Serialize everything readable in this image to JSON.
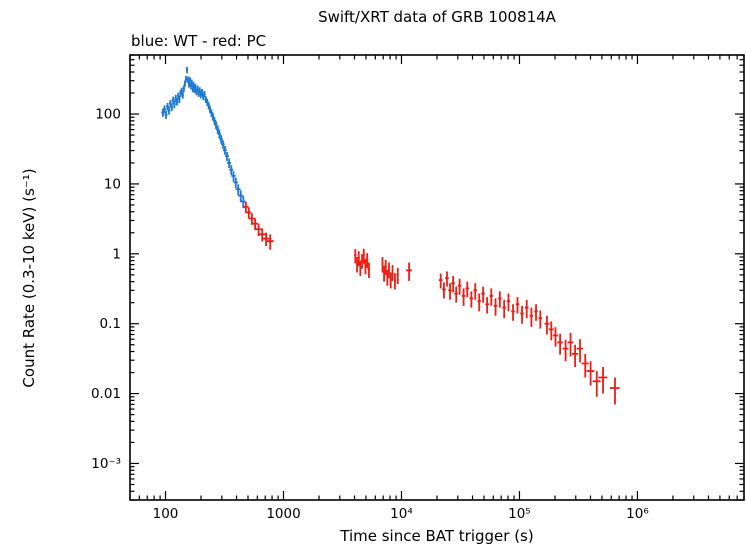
{
  "chart_data": {
    "type": "scatter",
    "title": "Swift/XRT data of GRB 100814A",
    "legend": "blue: WT - red: PC",
    "xlabel": "Time since BAT trigger (s)",
    "ylabel": "Count Rate (0.3-10 keV) (s⁻¹)",
    "xscale": "log",
    "yscale": "log",
    "grid": false,
    "legend_position": "top-left",
    "xlim": [
      50,
      8000000
    ],
    "ylim": [
      0.0003,
      700
    ],
    "x_ticks": [
      {
        "v": 100,
        "label": "100"
      },
      {
        "v": 1000,
        "label": "1000"
      },
      {
        "v": 10000,
        "label": "10⁴"
      },
      {
        "v": 100000,
        "label": "10⁵"
      },
      {
        "v": 1000000,
        "label": "10⁶"
      }
    ],
    "y_ticks": [
      {
        "v": 0.001,
        "label": "10⁻³"
      },
      {
        "v": 0.01,
        "label": "0.01"
      },
      {
        "v": 0.1,
        "label": "0.1"
      },
      {
        "v": 1,
        "label": "1"
      },
      {
        "v": 10,
        "label": "10"
      },
      {
        "v": 100,
        "label": "100"
      }
    ],
    "series": [
      {
        "id": "wt-series",
        "name": "WT",
        "color": "#1e78d2",
        "points": [
          [
            95,
            3,
            105,
            14
          ],
          [
            98,
            3,
            118,
            15
          ],
          [
            101,
            3,
            98,
            13
          ],
          [
            104,
            3,
            128,
            16
          ],
          [
            107,
            3,
            112,
            14
          ],
          [
            110,
            3,
            142,
            17
          ],
          [
            113,
            3,
            125,
            15
          ],
          [
            116,
            3,
            158,
            19
          ],
          [
            119,
            3,
            138,
            17
          ],
          [
            122,
            3,
            168,
            20
          ],
          [
            125,
            3,
            150,
            18
          ],
          [
            128,
            3,
            182,
            21
          ],
          [
            131,
            3,
            162,
            19
          ],
          [
            134,
            3,
            198,
            23
          ],
          [
            137,
            3,
            215,
            24
          ],
          [
            140,
            3,
            188,
            22
          ],
          [
            143,
            3,
            232,
            26
          ],
          [
            146,
            3,
            272,
            29
          ],
          [
            149,
            3,
            318,
            33
          ],
          [
            152,
            3,
            428,
            44
          ],
          [
            155,
            3,
            312,
            33
          ],
          [
            158,
            3,
            268,
            28
          ],
          [
            161,
            3,
            305,
            32
          ],
          [
            164,
            3,
            252,
            27
          ],
          [
            167,
            3,
            282,
            30
          ],
          [
            170,
            3,
            232,
            25
          ],
          [
            173,
            3,
            262,
            28
          ],
          [
            176,
            3,
            222,
            24
          ],
          [
            179,
            3,
            244,
            26
          ],
          [
            183,
            4,
            208,
            23
          ],
          [
            187,
            4,
            232,
            25
          ],
          [
            191,
            4,
            198,
            22
          ],
          [
            195,
            4,
            218,
            24
          ],
          [
            199,
            4,
            188,
            21
          ],
          [
            204,
            5,
            206,
            23
          ],
          [
            209,
            5,
            178,
            20
          ],
          [
            214,
            5,
            192,
            21
          ],
          [
            220,
            6,
            162,
            18
          ],
          [
            226,
            6,
            148,
            17
          ],
          [
            232,
            6,
            132,
            15
          ],
          [
            238,
            6,
            118,
            14
          ],
          [
            245,
            7,
            104,
            12
          ],
          [
            252,
            7,
            92,
            11
          ],
          [
            260,
            8,
            80,
            10
          ],
          [
            268,
            8,
            70,
            9
          ],
          [
            277,
            9,
            60,
            8
          ],
          [
            286,
            9,
            52,
            7
          ],
          [
            296,
            10,
            44,
            6
          ],
          [
            307,
            11,
            37,
            5.2
          ],
          [
            319,
            12,
            30.5,
            4.4
          ],
          [
            332,
            13,
            25,
            3.7
          ],
          [
            346,
            14,
            20,
            3.1
          ],
          [
            361,
            15,
            16,
            2.6
          ],
          [
            377,
            16,
            13,
            2.2
          ],
          [
            394,
            17,
            10.5,
            1.8
          ],
          [
            413,
            19,
            8.4,
            1.5
          ],
          [
            434,
            21,
            6.8,
            1.3
          ],
          [
            456,
            22,
            5.6,
            1.1
          ]
        ]
      },
      {
        "id": "pc-series",
        "name": "PC",
        "color": "#ee1c12",
        "points": [
          [
            480,
            25,
            4.7,
            0.85
          ],
          [
            508,
            27,
            3.9,
            0.72
          ],
          [
            540,
            30,
            3.2,
            0.6
          ],
          [
            575,
            33,
            2.7,
            0.52
          ],
          [
            615,
            37,
            2.25,
            0.45
          ],
          [
            660,
            42,
            1.9,
            0.4
          ],
          [
            712,
            48,
            1.65,
            0.36
          ],
          [
            772,
            52,
            1.52,
            0.38
          ],
          [
            4060,
            90,
            0.95,
            0.22
          ],
          [
            4200,
            90,
            0.72,
            0.18
          ],
          [
            4340,
            90,
            0.88,
            0.21
          ],
          [
            4480,
            90,
            0.64,
            0.16
          ],
          [
            4630,
            95,
            0.8,
            0.19
          ],
          [
            4790,
            95,
            0.95,
            0.23
          ],
          [
            4950,
            100,
            0.68,
            0.17
          ],
          [
            5120,
            100,
            0.82,
            0.2
          ],
          [
            5300,
            105,
            0.6,
            0.15
          ],
          [
            6900,
            130,
            0.72,
            0.18
          ],
          [
            7120,
            130,
            0.54,
            0.14
          ],
          [
            7350,
            135,
            0.66,
            0.16
          ],
          [
            7590,
            135,
            0.47,
            0.12
          ],
          [
            7840,
            140,
            0.6,
            0.15
          ],
          [
            8110,
            145,
            0.43,
            0.11
          ],
          [
            8400,
            150,
            0.55,
            0.14
          ],
          [
            8800,
            160,
            0.42,
            0.11
          ],
          [
            9300,
            170,
            0.5,
            0.13
          ],
          [
            11600,
            650,
            0.58,
            0.17
          ],
          [
            21500,
            800,
            0.42,
            0.1
          ],
          [
            22900,
            800,
            0.31,
            0.08
          ],
          [
            24300,
            850,
            0.45,
            0.11
          ],
          [
            25800,
            900,
            0.3,
            0.08
          ],
          [
            27400,
            950,
            0.38,
            0.1
          ],
          [
            29100,
            1000,
            0.27,
            0.07
          ],
          [
            31100,
            1100,
            0.35,
            0.09
          ],
          [
            33600,
            1150,
            0.25,
            0.07
          ],
          [
            36100,
            1250,
            0.32,
            0.08
          ],
          [
            39100,
            1350,
            0.23,
            0.06
          ],
          [
            42200,
            1450,
            0.3,
            0.08
          ],
          [
            45600,
            1550,
            0.21,
            0.06
          ],
          [
            49200,
            1700,
            0.27,
            0.07
          ],
          [
            53200,
            1850,
            0.19,
            0.05
          ],
          [
            57700,
            2000,
            0.25,
            0.07
          ],
          [
            62700,
            2150,
            0.18,
            0.05
          ],
          [
            68200,
            2350,
            0.23,
            0.06
          ],
          [
            74200,
            2550,
            0.17,
            0.05
          ],
          [
            80700,
            2800,
            0.21,
            0.06
          ],
          [
            88200,
            3050,
            0.15,
            0.04
          ],
          [
            96200,
            3300,
            0.19,
            0.05
          ],
          [
            105200,
            3600,
            0.14,
            0.04
          ],
          [
            115200,
            3950,
            0.17,
            0.05
          ],
          [
            126200,
            4300,
            0.13,
            0.04
          ],
          [
            138200,
            4700,
            0.15,
            0.04
          ],
          [
            150300,
            5100,
            0.12,
            0.035
          ],
          [
            171000,
            8000,
            0.1,
            0.03
          ],
          [
            186000,
            9000,
            0.083,
            0.025
          ],
          [
            202000,
            10000,
            0.068,
            0.021
          ],
          [
            221000,
            12000,
            0.054,
            0.018
          ],
          [
            246000,
            14000,
            0.044,
            0.015
          ],
          [
            271000,
            15000,
            0.054,
            0.02
          ],
          [
            296000,
            17000,
            0.037,
            0.013
          ],
          [
            326000,
            20000,
            0.044,
            0.016
          ],
          [
            361000,
            25000,
            0.027,
            0.01
          ],
          [
            401000,
            30000,
            0.021,
            0.008
          ],
          [
            452000,
            35000,
            0.015,
            0.006
          ],
          [
            511000,
            45000,
            0.017,
            0.007
          ],
          [
            645000,
            62000,
            0.012,
            0.005
          ]
        ]
      }
    ]
  }
}
